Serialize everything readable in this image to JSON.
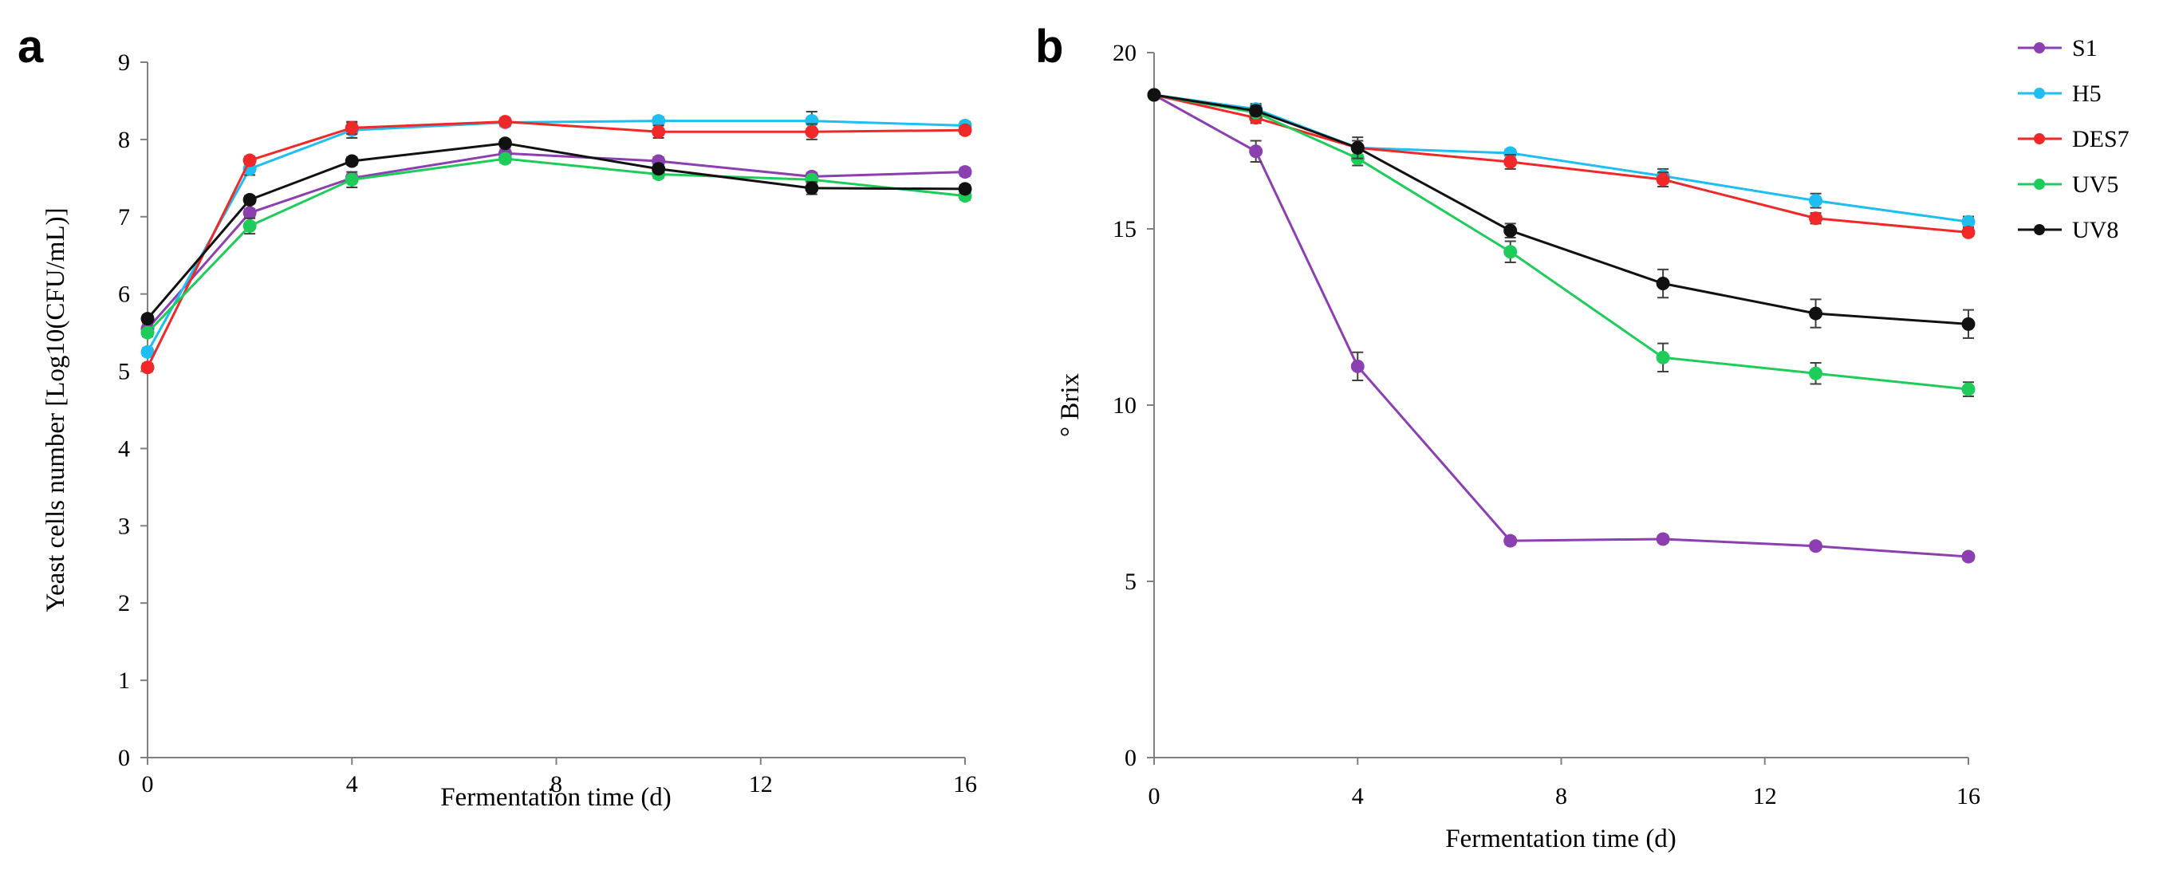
{
  "chart_data": [
    {
      "type": "line",
      "panel_label": "a",
      "title": "",
      "xlabel": "Fermentation time (d)",
      "ylabel": "Yeast cells number [Log10(CFU/mL)]",
      "xlim": [
        0,
        16
      ],
      "ylim": [
        0,
        9
      ],
      "xticks": [
        0,
        4,
        8,
        12,
        16
      ],
      "yticks": [
        0,
        1,
        2,
        3,
        4,
        5,
        6,
        7,
        8,
        9
      ],
      "x": [
        0,
        2,
        4,
        7,
        10,
        13,
        16
      ],
      "grid": false,
      "series": [
        {
          "name": "S1",
          "color": "#8B3FB0",
          "values": [
            5.55,
            7.05,
            7.5,
            7.82,
            7.72,
            7.52,
            7.58
          ],
          "errors": [
            0.05,
            0.05,
            0.05,
            0.05,
            0.05,
            0.05,
            0.05
          ]
        },
        {
          "name": "H5",
          "color": "#1EBEF0",
          "values": [
            5.25,
            7.62,
            8.12,
            8.22,
            8.24,
            8.24,
            8.18
          ],
          "errors": [
            0.05,
            0.08,
            0.1,
            0.05,
            0.05,
            0.12,
            0.05
          ]
        },
        {
          "name": "DES7",
          "color": "#F02828",
          "values": [
            5.05,
            7.73,
            8.15,
            8.23,
            8.1,
            8.1,
            8.12
          ],
          "errors": [
            0.05,
            0.05,
            0.08,
            0.05,
            0.08,
            0.1,
            0.05
          ]
        },
        {
          "name": "UV5",
          "color": "#1ECC5A",
          "values": [
            5.5,
            6.88,
            7.48,
            7.75,
            7.55,
            7.48,
            7.27
          ],
          "errors": [
            0.05,
            0.1,
            0.1,
            0.05,
            0.05,
            0.05,
            0.05
          ]
        },
        {
          "name": "UV8",
          "color": "#111111",
          "values": [
            5.68,
            7.22,
            7.72,
            7.95,
            7.62,
            7.37,
            7.36
          ],
          "errors": [
            0.05,
            0.05,
            0.05,
            0.05,
            0.05,
            0.08,
            0.05
          ]
        }
      ]
    },
    {
      "type": "line",
      "panel_label": "b",
      "title": "",
      "xlabel": "Fermentation time (d)",
      "ylabel": "° Brix",
      "xlim": [
        0,
        16
      ],
      "ylim": [
        0,
        20
      ],
      "xticks": [
        0,
        4,
        8,
        12,
        16
      ],
      "yticks": [
        0,
        5,
        10,
        15,
        20
      ],
      "x": [
        0,
        2,
        4,
        7,
        10,
        13,
        16
      ],
      "grid": false,
      "legend_position": "right",
      "series": [
        {
          "name": "S1",
          "color": "#8B3FB0",
          "values": [
            18.8,
            17.2,
            11.1,
            6.15,
            6.2,
            6.0,
            5.7
          ],
          "errors": [
            0.1,
            0.3,
            0.4,
            0.1,
            0.1,
            0.1,
            0.1
          ]
        },
        {
          "name": "H5",
          "color": "#1EBEF0",
          "values": [
            18.8,
            18.4,
            17.3,
            17.15,
            16.5,
            15.8,
            15.2
          ],
          "errors": [
            0.1,
            0.15,
            0.2,
            0.1,
            0.2,
            0.2,
            0.15
          ]
        },
        {
          "name": "DES7",
          "color": "#F02828",
          "values": [
            18.8,
            18.15,
            17.3,
            16.9,
            16.4,
            15.3,
            14.9
          ],
          "errors": [
            0.1,
            0.15,
            0.2,
            0.2,
            0.2,
            0.15,
            0.1
          ]
        },
        {
          "name": "UV5",
          "color": "#1ECC5A",
          "values": [
            18.8,
            18.3,
            17.0,
            14.35,
            11.35,
            10.9,
            10.45
          ],
          "errors": [
            0.1,
            0.15,
            0.2,
            0.3,
            0.4,
            0.3,
            0.2
          ]
        },
        {
          "name": "UV8",
          "color": "#111111",
          "values": [
            18.8,
            18.35,
            17.3,
            14.95,
            13.45,
            12.6,
            12.3
          ],
          "errors": [
            0.1,
            0.15,
            0.3,
            0.2,
            0.4,
            0.4,
            0.4
          ]
        }
      ]
    }
  ]
}
